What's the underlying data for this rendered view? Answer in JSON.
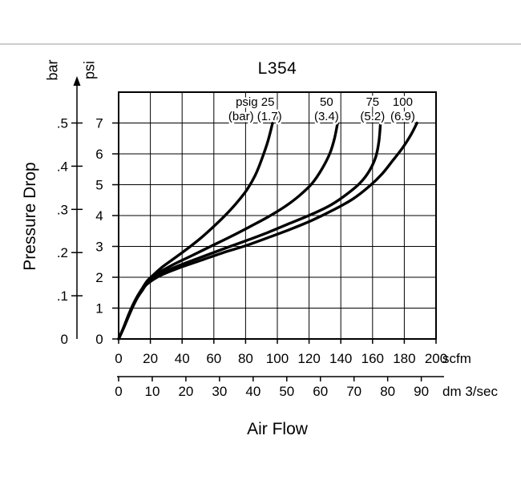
{
  "chart_data": {
    "type": "line",
    "title": "L354",
    "xlabel": "Air Flow",
    "ylabel": "Pressure Drop",
    "grid": true,
    "x_scales": [
      {
        "unit": "scfm",
        "tick_values": [
          0,
          20,
          40,
          60,
          80,
          100,
          120,
          140,
          160,
          180,
          200
        ],
        "tick_labels": [
          "0",
          "20",
          "40",
          "60",
          "80",
          "100",
          "120",
          "140",
          "160",
          "180",
          "200"
        ],
        "range": [
          0,
          200
        ]
      },
      {
        "unit": "dm 3/sec",
        "tick_values": [
          0,
          10,
          20,
          30,
          40,
          50,
          60,
          70,
          80,
          90
        ],
        "tick_labels": [
          "0",
          "10",
          "20",
          "30",
          "40",
          "50",
          "60",
          "70",
          "80",
          "90"
        ],
        "range": [
          0,
          94
        ],
        "scfm_per_unit": 2.119
      }
    ],
    "y_scales": [
      {
        "unit": "bar",
        "tick_values": [
          0,
          0.1,
          0.2,
          0.3,
          0.4,
          0.5
        ],
        "tick_labels": [
          "0",
          ".1",
          ".2",
          ".3",
          ".4",
          ".5"
        ],
        "range": [
          0,
          0.5
        ]
      },
      {
        "unit": "psi",
        "tick_values": [
          0,
          1,
          2,
          3,
          4,
          5,
          6,
          7
        ],
        "tick_labels": [
          "0",
          "1",
          "2",
          "3",
          "4",
          "5",
          "6",
          "7"
        ],
        "range": [
          0,
          7
        ]
      }
    ],
    "series": [
      {
        "name": "25 psig (1.7 bar)",
        "label_line1": "psig 25",
        "label_line2": "(bar) (1.7)",
        "label_x_scfm": 86,
        "points_scfm_psi": [
          [
            0,
            0
          ],
          [
            3,
            0.35
          ],
          [
            6,
            0.75
          ],
          [
            9,
            1.1
          ],
          [
            12,
            1.4
          ],
          [
            15,
            1.65
          ],
          [
            18,
            1.88
          ],
          [
            22,
            2.08
          ],
          [
            28,
            2.35
          ],
          [
            36,
            2.65
          ],
          [
            44,
            2.95
          ],
          [
            52,
            3.28
          ],
          [
            60,
            3.65
          ],
          [
            68,
            4.05
          ],
          [
            75,
            4.45
          ],
          [
            81,
            4.85
          ],
          [
            86,
            5.3
          ],
          [
            90,
            5.8
          ],
          [
            94,
            6.4
          ],
          [
            97,
            7.0
          ]
        ]
      },
      {
        "name": "50 psig (3.4 bar)",
        "label_line1": "50",
        "label_line2": "(3.4)",
        "label_x_scfm": 131,
        "points_scfm_psi": [
          [
            0,
            0
          ],
          [
            3,
            0.35
          ],
          [
            6,
            0.75
          ],
          [
            9,
            1.1
          ],
          [
            12,
            1.4
          ],
          [
            15,
            1.63
          ],
          [
            18,
            1.85
          ],
          [
            24,
            2.1
          ],
          [
            34,
            2.4
          ],
          [
            46,
            2.7
          ],
          [
            58,
            3.0
          ],
          [
            70,
            3.3
          ],
          [
            82,
            3.62
          ],
          [
            94,
            3.95
          ],
          [
            105,
            4.3
          ],
          [
            114,
            4.65
          ],
          [
            122,
            5.05
          ],
          [
            128,
            5.5
          ],
          [
            133,
            6.0
          ],
          [
            136,
            6.5
          ],
          [
            138,
            7.0
          ]
        ]
      },
      {
        "name": "75 psig (5.2 bar)",
        "label_line1": "75",
        "label_line2": "(5.2)",
        "label_x_scfm": 160,
        "points_scfm_psi": [
          [
            0,
            0
          ],
          [
            3,
            0.35
          ],
          [
            6,
            0.73
          ],
          [
            9,
            1.08
          ],
          [
            12,
            1.38
          ],
          [
            15,
            1.6
          ],
          [
            18,
            1.82
          ],
          [
            26,
            2.1
          ],
          [
            38,
            2.38
          ],
          [
            52,
            2.65
          ],
          [
            66,
            2.92
          ],
          [
            80,
            3.18
          ],
          [
            94,
            3.45
          ],
          [
            108,
            3.75
          ],
          [
            122,
            4.05
          ],
          [
            134,
            4.35
          ],
          [
            144,
            4.7
          ],
          [
            152,
            5.05
          ],
          [
            158,
            5.45
          ],
          [
            162,
            5.9
          ],
          [
            164,
            6.4
          ],
          [
            165,
            7.0
          ]
        ]
      },
      {
        "name": "100 psig (6.9 bar)",
        "label_line1": "100",
        "label_line2": "(6.9)",
        "label_x_scfm": 179,
        "points_scfm_psi": [
          [
            0,
            0
          ],
          [
            3,
            0.33
          ],
          [
            6,
            0.7
          ],
          [
            9,
            1.05
          ],
          [
            12,
            1.35
          ],
          [
            15,
            1.58
          ],
          [
            18,
            1.78
          ],
          [
            26,
            2.05
          ],
          [
            38,
            2.3
          ],
          [
            52,
            2.55
          ],
          [
            66,
            2.8
          ],
          [
            80,
            3.02
          ],
          [
            94,
            3.28
          ],
          [
            108,
            3.55
          ],
          [
            122,
            3.85
          ],
          [
            136,
            4.2
          ],
          [
            148,
            4.55
          ],
          [
            158,
            4.95
          ],
          [
            166,
            5.35
          ],
          [
            173,
            5.8
          ],
          [
            179,
            6.2
          ],
          [
            184,
            6.6
          ],
          [
            188,
            7.0
          ]
        ]
      }
    ]
  }
}
